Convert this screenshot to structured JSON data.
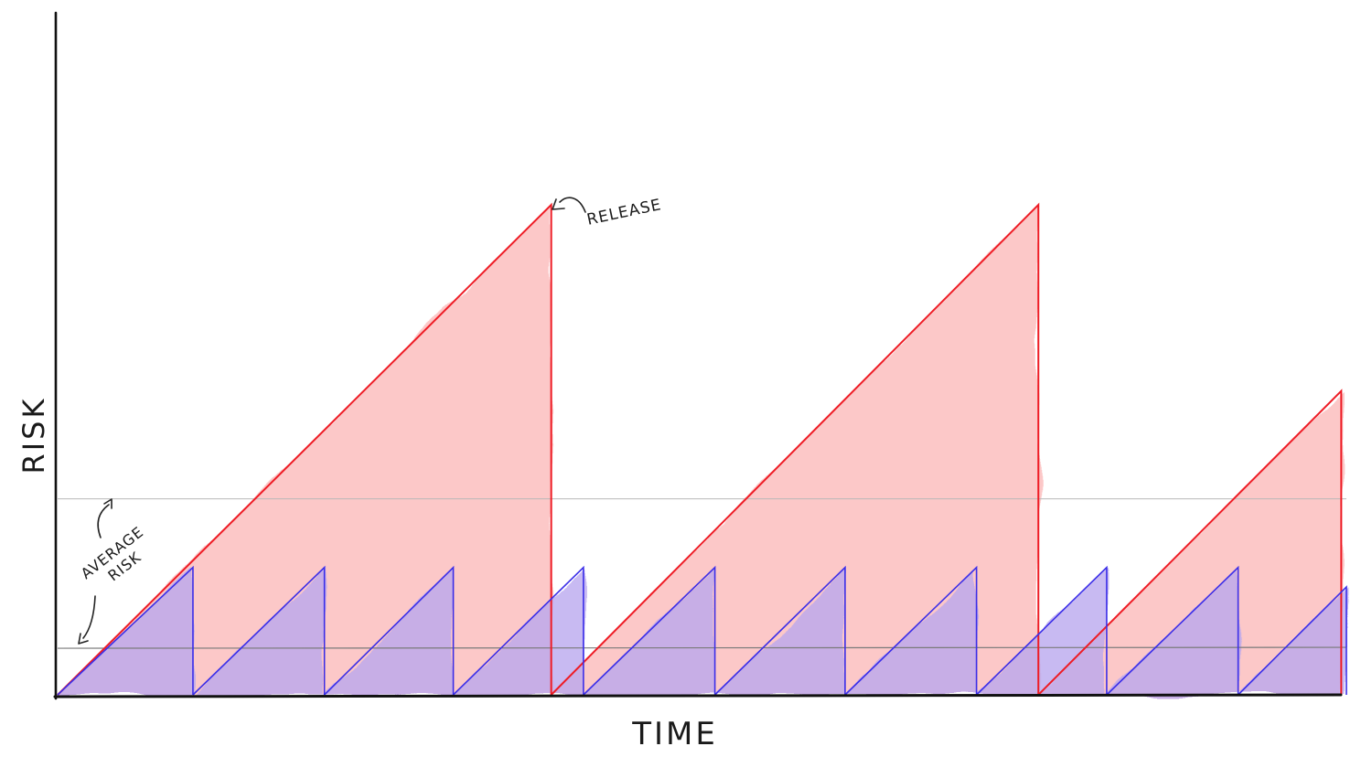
{
  "chart_data": {
    "type": "area",
    "xlabel": "TIME",
    "ylabel": "RISK",
    "xlim": [
      0,
      100
    ],
    "ylim": [
      0,
      100
    ],
    "grid": false,
    "colors": {
      "big_release_line": "#ee1c25",
      "big_release_fill": "#fbb6b6",
      "small_release_line": "#3b2ee8",
      "small_release_fill": "#b9a6ee",
      "average_line": "#7a7a7a",
      "average_line_big": "#b9b9b9",
      "axis": "#111111"
    },
    "series": [
      {
        "key": "big",
        "cycles": [
          {
            "start": 0.0,
            "end": 38.3,
            "peak": 100
          },
          {
            "start": 38.3,
            "end": 76.1,
            "peak": 100
          },
          {
            "start": 76.1,
            "end": 99.6,
            "peak": 62
          }
        ]
      },
      {
        "key": "small",
        "cycles": [
          {
            "start": 0.0,
            "end": 10.5,
            "peak": 26
          },
          {
            "start": 10.5,
            "end": 20.7,
            "peak": 26
          },
          {
            "start": 20.7,
            "end": 30.7,
            "peak": 26
          },
          {
            "start": 30.7,
            "end": 40.8,
            "peak": 26
          },
          {
            "start": 40.8,
            "end": 51.0,
            "peak": 26
          },
          {
            "start": 51.0,
            "end": 61.1,
            "peak": 26
          },
          {
            "start": 61.1,
            "end": 71.3,
            "peak": 26
          },
          {
            "start": 71.3,
            "end": 81.4,
            "peak": 26
          },
          {
            "start": 81.4,
            "end": 91.6,
            "peak": 26
          },
          {
            "start": 91.6,
            "end": 100.0,
            "peak": 22
          }
        ]
      }
    ],
    "average_risk": {
      "big": 40,
      "small": 9.5
    },
    "annotations": [
      {
        "text": "RELEASE",
        "target": "big-cycle-1-peak"
      },
      {
        "text": "AVERAGE RISK",
        "targets": [
          "average-line-big",
          "average-line-small"
        ]
      }
    ]
  }
}
